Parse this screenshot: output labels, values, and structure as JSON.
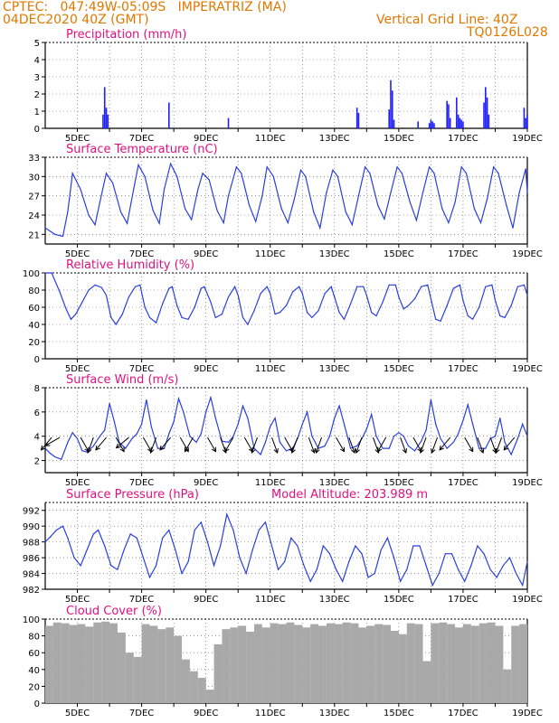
{
  "header": {
    "line1": "CPTEC:   047:49W-05:09S   IMPERATRIZ (MA)",
    "line2": "04DEC2020 40Z (GMT)",
    "grid_note": "Vertical Grid Line: 40Z",
    "code": "TQ0126L028"
  },
  "x_axis": {
    "start_day": 4,
    "end_day": 19,
    "tick_labels": [
      "5DEC",
      "7DEC",
      "9DEC",
      "11DEC",
      "13DEC",
      "15DEC",
      "17DEC",
      "19DEC"
    ]
  },
  "chart_data": [
    {
      "type": "bar",
      "title": "Precipitation (mm/h)",
      "ylim": [
        0,
        5
      ],
      "yticks": [
        0,
        1,
        2,
        3,
        4,
        5
      ],
      "color": "#1f1fff",
      "x": [
        5.8,
        5.85,
        5.9,
        5.95,
        7.85,
        9.7,
        13.7,
        13.75,
        14.7,
        14.75,
        14.8,
        14.85,
        15.6,
        15.95,
        16.0,
        16.05,
        16.1,
        16.5,
        16.55,
        16.6,
        16.8,
        16.85,
        16.9,
        16.95,
        17.0,
        17.65,
        17.7,
        17.75,
        17.8,
        18.9,
        18.95,
        19.0
      ],
      "values": [
        0.8,
        2.4,
        1.2,
        0.8,
        1.5,
        0.6,
        1.2,
        0.9,
        1.1,
        2.8,
        2.2,
        0.5,
        0.4,
        0.3,
        0.5,
        0.4,
        0.3,
        1.6,
        1.4,
        0.6,
        1.8,
        0.8,
        0.6,
        0.5,
        0.4,
        1.5,
        2.4,
        1.8,
        0.8,
        1.2,
        0.6,
        0.8
      ]
    },
    {
      "type": "line",
      "title": "Surface Temperature (nC)",
      "ylim": [
        19.5,
        33
      ],
      "yticks": [
        21,
        24,
        27,
        30,
        33
      ],
      "color": "#2a3fe0",
      "x": [
        4.0,
        4.3,
        4.55,
        4.7,
        4.85,
        5.1,
        5.35,
        5.55,
        5.7,
        5.9,
        6.1,
        6.35,
        6.55,
        6.75,
        6.9,
        7.1,
        7.35,
        7.55,
        7.7,
        7.9,
        8.1,
        8.35,
        8.55,
        8.75,
        8.9,
        9.1,
        9.35,
        9.55,
        9.7,
        9.95,
        10.1,
        10.35,
        10.55,
        10.75,
        10.9,
        11.1,
        11.35,
        11.55,
        11.75,
        11.95,
        12.1,
        12.35,
        12.55,
        12.75,
        12.95,
        13.1,
        13.35,
        13.55,
        13.75,
        13.95,
        14.1,
        14.35,
        14.55,
        14.75,
        14.95,
        15.1,
        15.35,
        15.55,
        15.75,
        15.95,
        16.1,
        16.35,
        16.55,
        16.75,
        16.95,
        17.1,
        17.35,
        17.55,
        17.75,
        17.95,
        18.1,
        18.35,
        18.55,
        18.75,
        18.95,
        19.0
      ],
      "values": [
        22,
        21,
        20.7,
        24.5,
        30.5,
        28,
        24,
        22.5,
        26,
        30.5,
        29,
        24.5,
        22.7,
        28,
        31.8,
        30,
        24.8,
        22.7,
        28,
        32,
        30,
        25,
        23.3,
        28,
        30.5,
        29.5,
        24.7,
        22.8,
        27,
        31.5,
        30.5,
        25.5,
        23,
        27,
        31.5,
        30,
        25,
        22.8,
        26.5,
        31,
        30,
        24.5,
        22,
        27.5,
        31,
        30,
        24.5,
        22.5,
        27,
        31.5,
        30.5,
        25.5,
        23.4,
        27.5,
        31.5,
        30.5,
        26,
        23.2,
        27.5,
        31.5,
        30.5,
        25,
        22.8,
        26,
        31.5,
        30.5,
        25,
        22.8,
        26.5,
        31.5,
        30.5,
        25.5,
        22,
        27.5,
        31.2,
        27.5
      ]
    },
    {
      "type": "line",
      "title": "Relative Humidity (%)",
      "ylim": [
        0,
        100
      ],
      "yticks": [
        0,
        20,
        40,
        60,
        80,
        100
      ],
      "color": "#2a3fe0",
      "x": [
        4.0,
        4.2,
        4.45,
        4.65,
        4.8,
        4.95,
        5.15,
        5.35,
        5.55,
        5.75,
        5.9,
        6.05,
        6.2,
        6.4,
        6.6,
        6.8,
        6.95,
        7.1,
        7.25,
        7.45,
        7.65,
        7.85,
        7.95,
        8.1,
        8.25,
        8.45,
        8.65,
        8.85,
        8.95,
        9.15,
        9.3,
        9.5,
        9.7,
        9.9,
        10.0,
        10.15,
        10.3,
        10.5,
        10.7,
        10.9,
        11.0,
        11.15,
        11.3,
        11.5,
        11.7,
        11.9,
        12.0,
        12.15,
        12.3,
        12.5,
        12.7,
        12.9,
        13.0,
        13.15,
        13.3,
        13.5,
        13.7,
        13.9,
        14.0,
        14.15,
        14.3,
        14.5,
        14.7,
        14.9,
        15.0,
        15.15,
        15.3,
        15.5,
        15.7,
        15.9,
        16.0,
        16.15,
        16.3,
        16.5,
        16.7,
        16.9,
        17.0,
        17.15,
        17.3,
        17.5,
        17.7,
        17.9,
        18.0,
        18.15,
        18.3,
        18.5,
        18.7,
        18.9,
        19.0
      ],
      "values": [
        100,
        100,
        78,
        58,
        46,
        52,
        66,
        80,
        86,
        83,
        74,
        48,
        40,
        52,
        72,
        84,
        86,
        60,
        48,
        42,
        64,
        82,
        84,
        62,
        48,
        46,
        60,
        82,
        84,
        66,
        48,
        52,
        72,
        84,
        74,
        48,
        40,
        56,
        76,
        84,
        76,
        52,
        54,
        62,
        78,
        84,
        76,
        54,
        48,
        56,
        76,
        84,
        72,
        54,
        46,
        64,
        84,
        84,
        74,
        54,
        50,
        66,
        86,
        86,
        72,
        58,
        62,
        70,
        84,
        86,
        70,
        46,
        44,
        62,
        82,
        86,
        68,
        50,
        46,
        60,
        84,
        86,
        68,
        50,
        48,
        62,
        84,
        86,
        74
      ]
    },
    {
      "type": "line",
      "title": "Surface Wind (m/s)",
      "ylim": [
        1,
        8
      ],
      "yticks": [
        2,
        4,
        6,
        8
      ],
      "color": "#2a3fe0",
      "x": [
        4.0,
        4.15,
        4.3,
        4.5,
        4.7,
        4.85,
        5.0,
        5.15,
        5.3,
        5.5,
        5.7,
        5.85,
        6.0,
        6.15,
        6.3,
        6.5,
        6.7,
        6.85,
        7.0,
        7.15,
        7.3,
        7.5,
        7.7,
        7.85,
        8.0,
        8.15,
        8.3,
        8.5,
        8.7,
        8.85,
        9.0,
        9.15,
        9.3,
        9.5,
        9.7,
        9.85,
        10.0,
        10.15,
        10.3,
        10.5,
        10.7,
        10.85,
        11.0,
        11.15,
        11.3,
        11.5,
        11.7,
        11.85,
        12.0,
        12.15,
        12.3,
        12.5,
        12.7,
        12.85,
        13.0,
        13.15,
        13.3,
        13.5,
        13.7,
        13.85,
        14.0,
        14.15,
        14.3,
        14.5,
        14.7,
        14.85,
        15.0,
        15.15,
        15.3,
        15.5,
        15.7,
        15.85,
        16.0,
        16.15,
        16.3,
        16.5,
        16.7,
        16.85,
        17.0,
        17.15,
        17.3,
        17.5,
        17.7,
        17.85,
        18.0,
        18.15,
        18.3,
        18.5,
        18.7,
        18.85,
        19.0
      ],
      "values": [
        3.0,
        2.6,
        2.3,
        2.1,
        3.5,
        4.3,
        3.8,
        2.8,
        2.7,
        3.2,
        4.0,
        4.5,
        6.7,
        5.2,
        3.5,
        3.0,
        3.8,
        4.2,
        5.0,
        7.0,
        4.8,
        3.0,
        3.0,
        4.2,
        5.2,
        7.1,
        6.0,
        4.0,
        3.5,
        4.2,
        6.0,
        7.2,
        5.5,
        3.6,
        3.5,
        4.0,
        5.0,
        6.5,
        5.5,
        3.0,
        2.5,
        3.5,
        4.8,
        5.5,
        3.5,
        2.8,
        3.0,
        3.8,
        5.0,
        6.0,
        4.0,
        3.0,
        3.2,
        4.0,
        5.5,
        6.5,
        5.0,
        3.0,
        3.2,
        3.8,
        4.6,
        5.8,
        4.0,
        3.0,
        3.0,
        4.0,
        4.3,
        4.0,
        3.2,
        2.8,
        3.6,
        4.5,
        7.0,
        5.0,
        3.8,
        3.0,
        3.5,
        4.2,
        5.3,
        6.6,
        5.0,
        3.0,
        3.0,
        3.8,
        4.0,
        5.5,
        3.5,
        2.5,
        3.8,
        5.0,
        4.0
      ],
      "barbs": {
        "x": [
          4.2,
          4.45,
          5.1,
          5.5,
          5.9,
          6.2,
          6.6,
          7.05,
          7.45,
          7.9,
          8.2,
          8.6,
          9.05,
          9.45,
          9.85,
          10.2,
          10.6,
          11.05,
          11.45,
          11.85,
          12.2,
          12.6,
          13.05,
          13.45,
          13.85,
          14.2,
          14.6,
          15.05,
          15.45,
          15.85,
          16.2,
          16.6,
          17.05,
          17.45,
          17.85,
          18.2,
          18.6
        ],
        "from_deg": [
          40,
          60,
          330,
          20,
          40,
          330,
          50,
          330,
          20,
          40,
          330,
          30,
          330,
          340,
          30,
          330,
          20,
          340,
          330,
          20,
          340,
          20,
          330,
          340,
          20,
          340,
          30,
          340,
          330,
          20,
          20,
          40,
          330,
          340,
          340,
          20,
          40
        ]
      }
    },
    {
      "type": "line",
      "title": "Surface Pressure (hPa)",
      "annotation": "Model Altitude: 203.989  m",
      "ylim": [
        982,
        993
      ],
      "yticks": [
        982,
        984,
        986,
        988,
        990,
        992
      ],
      "color": "#2a3fe0",
      "x": [
        4.0,
        4.15,
        4.35,
        4.55,
        4.7,
        4.9,
        5.1,
        5.3,
        5.5,
        5.65,
        5.85,
        6.05,
        6.25,
        6.45,
        6.65,
        6.85,
        7.05,
        7.25,
        7.45,
        7.65,
        7.85,
        8.05,
        8.25,
        8.45,
        8.65,
        8.85,
        9.05,
        9.25,
        9.45,
        9.65,
        9.85,
        10.05,
        10.25,
        10.45,
        10.65,
        10.85,
        11.05,
        11.25,
        11.45,
        11.65,
        11.85,
        12.05,
        12.25,
        12.45,
        12.65,
        12.85,
        13.05,
        13.25,
        13.45,
        13.65,
        13.85,
        14.05,
        14.25,
        14.45,
        14.65,
        14.85,
        15.05,
        15.25,
        15.45,
        15.65,
        15.85,
        16.05,
        16.25,
        16.45,
        16.65,
        16.85,
        17.05,
        17.25,
        17.45,
        17.65,
        17.85,
        18.05,
        18.25,
        18.45,
        18.65,
        18.85,
        19.0
      ],
      "values": [
        988,
        988.6,
        989.5,
        990,
        988.5,
        986,
        985,
        987,
        989,
        989.5,
        987.5,
        985,
        984.5,
        987,
        989,
        988.5,
        986,
        983.5,
        985,
        988.5,
        989.5,
        987,
        984,
        985.5,
        989.5,
        990.5,
        988,
        985,
        987.5,
        991.5,
        989.5,
        986,
        984,
        987,
        989.5,
        990.5,
        987.5,
        984.5,
        985.5,
        988.5,
        987.5,
        985,
        983,
        984.5,
        987.5,
        986.5,
        984.5,
        983,
        985.5,
        987.5,
        986.5,
        983.5,
        984,
        987,
        988.5,
        986,
        983,
        984.5,
        987.5,
        987.5,
        985,
        982.5,
        984,
        986.5,
        986.5,
        984.5,
        983,
        985,
        987.5,
        986.5,
        984.5,
        983.5,
        985,
        986,
        984,
        982.5,
        985.5
      ]
    },
    {
      "type": "bar",
      "title": "Cloud Cover (%)",
      "ylim": [
        0,
        100
      ],
      "yticks": [
        0,
        20,
        40,
        60,
        80,
        100
      ],
      "color": "#a9a9a9",
      "x": [
        4.0,
        4.25,
        4.5,
        4.75,
        5.0,
        5.25,
        5.5,
        5.75,
        6.0,
        6.25,
        6.5,
        6.75,
        7.0,
        7.25,
        7.5,
        7.75,
        8.0,
        8.25,
        8.5,
        8.75,
        9.0,
        9.25,
        9.5,
        9.75,
        10.0,
        10.25,
        10.5,
        10.75,
        11.0,
        11.25,
        11.5,
        11.75,
        12.0,
        12.25,
        12.5,
        12.75,
        13.0,
        13.25,
        13.5,
        13.75,
        14.0,
        14.25,
        14.5,
        14.75,
        15.0,
        15.25,
        15.5,
        15.75,
        16.0,
        16.25,
        16.5,
        16.75,
        17.0,
        17.25,
        17.5,
        17.75,
        18.0,
        18.25,
        18.5,
        18.75
      ],
      "values": [
        92,
        96,
        95,
        93,
        94,
        91,
        96,
        97,
        95,
        84,
        60,
        55,
        94,
        92,
        88,
        90,
        80,
        52,
        38,
        30,
        16,
        70,
        88,
        90,
        92,
        85,
        94,
        90,
        95,
        94,
        96,
        93,
        90,
        94,
        92,
        95,
        94,
        96,
        95,
        90,
        92,
        94,
        93,
        86,
        82,
        95,
        94,
        50,
        95,
        96,
        94,
        90,
        94,
        92,
        95,
        96,
        92,
        40,
        92,
        94
      ]
    }
  ]
}
